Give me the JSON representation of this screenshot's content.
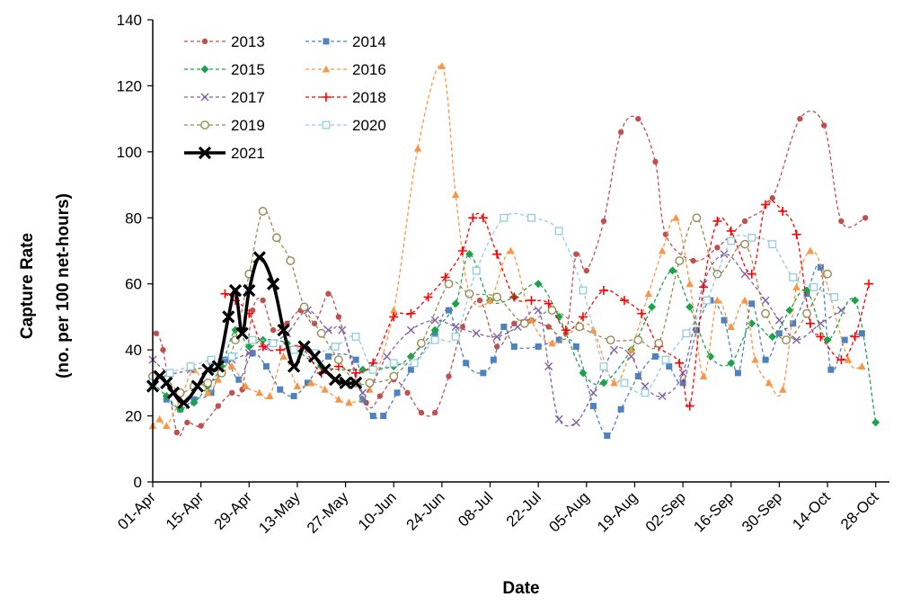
{
  "chart_data": {
    "type": "line",
    "title": "",
    "xlabel": "Date",
    "ylabel": "Capture Rate",
    "ylabel_sub": "(no. per 100 net-hours)",
    "x_is_date": true,
    "xlim": [
      "Apr 1",
      "Nov 1"
    ],
    "ylim": [
      0,
      140
    ],
    "yticks": [
      0,
      20,
      40,
      60,
      80,
      100,
      120,
      140
    ],
    "xticks": [
      {
        "date": "Apr 1",
        "label": "01-Apr"
      },
      {
        "date": "Apr 15",
        "label": "15-Apr"
      },
      {
        "date": "Apr 29",
        "label": "29-Apr"
      },
      {
        "date": "May 13",
        "label": "13-May"
      },
      {
        "date": "May 27",
        "label": "27-May"
      },
      {
        "date": "Jun 10",
        "label": "10-Jun"
      },
      {
        "date": "Jun 24",
        "label": "24-Jun"
      },
      {
        "date": "Jul 8",
        "label": "08-Jul"
      },
      {
        "date": "Jul 22",
        "label": "22-Jul"
      },
      {
        "date": "Aug 5",
        "label": "05-Aug"
      },
      {
        "date": "Aug 19",
        "label": "19-Aug"
      },
      {
        "date": "Sep 2",
        "label": "02-Sep"
      },
      {
        "date": "Sep 16",
        "label": "16-Sep"
      },
      {
        "date": "Sep 30",
        "label": "30-Sep"
      },
      {
        "date": "Oct 14",
        "label": "14-Oct"
      },
      {
        "date": "Oct 28",
        "label": "28-Oct"
      }
    ],
    "grid": false,
    "legend_position": "top-left",
    "series": [
      {
        "name": "2013",
        "color": "#c0504d",
        "marker": "circle",
        "dashed": true,
        "x": [
          "Apr 2",
          "Apr 4",
          "Apr 8",
          "Apr 11",
          "Apr 15",
          "Apr 20",
          "Apr 24",
          "Apr 27",
          "Apr 30",
          "May 3",
          "May 6",
          "May 10",
          "May 14",
          "May 18",
          "May 22",
          "May 25",
          "Jun 2",
          "Jun 6",
          "Jun 10",
          "Jun 14",
          "Jun 18",
          "Jun 22",
          "Jun 26",
          "Jun 30",
          "Jul 5",
          "Jul 10",
          "Jul 15",
          "Jul 20",
          "Jul 25",
          "Jul 30",
          "Aug 2",
          "Aug 5",
          "Aug 10",
          "Aug 15",
          "Aug 20",
          "Aug 25",
          "Aug 28",
          "Sep 5",
          "Sep 12",
          "Sep 20",
          "Sep 28",
          "Oct 6",
          "Oct 13",
          "Oct 18",
          "Oct 25"
        ],
        "y": [
          45,
          40,
          15,
          18,
          17,
          23,
          27,
          28,
          52,
          55,
          46,
          48,
          52,
          48,
          57,
          50,
          24,
          26,
          31,
          27,
          21,
          21,
          32,
          47,
          55,
          41,
          48,
          49,
          47,
          45,
          69,
          64,
          79,
          106,
          110,
          97,
          75,
          67,
          71,
          79,
          86,
          110,
          108,
          79,
          80
        ]
      },
      {
        "name": "2014",
        "color": "#4f81bd",
        "marker": "square",
        "dashed": true,
        "x": [
          "Apr 5",
          "Apr 9",
          "Apr 13",
          "Apr 18",
          "Apr 22",
          "Apr 26",
          "Apr 30",
          "May 4",
          "May 8",
          "May 12",
          "May 16",
          "May 22",
          "May 30",
          "Jun 1",
          "Jun 4",
          "Jun 7",
          "Jun 11",
          "Jun 15",
          "Jun 22",
          "Jun 26",
          "Jul 1",
          "Jul 6",
          "Jul 9",
          "Jul 12",
          "Jul 15",
          "Jul 22",
          "Jul 28",
          "Aug 2",
          "Aug 7",
          "Aug 11",
          "Aug 15",
          "Aug 20",
          "Aug 25",
          "Aug 29",
          "Sep 2",
          "Sep 6",
          "Sep 10",
          "Sep 14",
          "Sep 18",
          "Sep 22",
          "Sep 26",
          "Sep 30",
          "Oct 4",
          "Oct 8",
          "Oct 12",
          "Oct 15",
          "Oct 19",
          "Oct 24"
        ],
        "y": [
          25,
          22,
          25,
          27,
          37,
          31,
          39,
          35,
          28,
          26,
          30,
          38,
          37,
          25,
          20,
          20,
          27,
          34,
          45,
          52,
          36,
          33,
          37,
          47,
          41,
          41,
          43,
          41,
          23,
          14,
          22,
          32,
          38,
          35,
          30,
          46,
          55,
          49,
          33,
          54,
          37,
          45,
          48,
          57,
          65,
          34,
          43,
          45
        ]
      },
      {
        "name": "2015",
        "color": "#1aa34a",
        "marker": "diamond",
        "dashed": true,
        "x": [
          "Apr 1",
          "Apr 5",
          "Apr 9",
          "Apr 13",
          "Apr 17",
          "Apr 21",
          "Apr 25",
          "Apr 29",
          "May 3",
          "May 10",
          "May 20",
          "Jun 1",
          "Jun 10",
          "Jun 15",
          "Jun 22",
          "Jun 28",
          "Jul 2",
          "Jul 8",
          "Jul 15",
          "Jul 22",
          "Jul 28",
          "Aug 4",
          "Aug 10",
          "Aug 18",
          "Aug 24",
          "Aug 30",
          "Sep 4",
          "Sep 10",
          "Sep 16",
          "Sep 22",
          "Sep 28",
          "Oct 3",
          "Oct 8",
          "Oct 14",
          "Oct 22",
          "Oct 28"
        ],
        "y": [
          30,
          26,
          22,
          24,
          29,
          35,
          46,
          41,
          43,
          42,
          35,
          34,
          35,
          38,
          46,
          54,
          69,
          55,
          56,
          60,
          50,
          33,
          30,
          40,
          53,
          64,
          53,
          38,
          36,
          48,
          44,
          52,
          58,
          43,
          55,
          18
        ]
      },
      {
        "name": "2016",
        "color": "#f79646",
        "marker": "triangle",
        "dashed": true,
        "x": [
          "Apr 1",
          "Apr 3",
          "Apr 5",
          "Apr 9",
          "Apr 13",
          "Apr 17",
          "Apr 20",
          "Apr 24",
          "Apr 28",
          "May 2",
          "May 5",
          "May 9",
          "May 13",
          "May 17",
          "May 21",
          "May 25",
          "May 28",
          "Jun 3",
          "Jun 10",
          "Jun 17",
          "Jun 24",
          "Jun 28",
          "Jul 2",
          "Jul 8",
          "Jul 14",
          "Jul 20",
          "Jul 26",
          "Aug 3",
          "Aug 7",
          "Aug 13",
          "Aug 18",
          "Aug 23",
          "Aug 27",
          "Aug 31",
          "Sep 4",
          "Sep 8",
          "Sep 12",
          "Sep 16",
          "Sep 20",
          "Sep 23",
          "Sep 27",
          "Oct 1",
          "Oct 5",
          "Oct 9",
          "Oct 13",
          "Oct 20",
          "Oct 24"
        ],
        "y": [
          17,
          19,
          17,
          25,
          34,
          27,
          31,
          35,
          29,
          27,
          26,
          38,
          29,
          30,
          28,
          25,
          24,
          28,
          52,
          101,
          126,
          87,
          57,
          55,
          70,
          49,
          42,
          47,
          46,
          30,
          40,
          57,
          70,
          80,
          60,
          32,
          55,
          47,
          55,
          37,
          30,
          28,
          59,
          70,
          63,
          37,
          35
        ]
      },
      {
        "name": "2017",
        "color": "#8064a2",
        "marker": "x",
        "dashed": true,
        "x": [
          "Apr 1",
          "Apr 6",
          "Apr 12",
          "Apr 18",
          "Apr 24",
          "Apr 29",
          "May 4",
          "May 10",
          "May 16",
          "May 22",
          "May 26",
          "Jun 1",
          "Jun 8",
          "Jun 15",
          "Jun 22",
          "Jun 28",
          "Jul 4",
          "Jul 10",
          "Jul 16",
          "Jul 22",
          "Jul 25",
          "Jul 28",
          "Aug 2",
          "Aug 7",
          "Aug 13",
          "Aug 18",
          "Aug 22",
          "Aug 27",
          "Sep 2",
          "Sep 8",
          "Sep 14",
          "Sep 20",
          "Sep 26",
          "Sep 30",
          "Oct 5",
          "Oct 12",
          "Oct 18"
        ],
        "y": [
          37,
          33,
          34,
          35,
          37,
          39,
          41,
          45,
          52,
          46,
          46,
          27,
          38,
          46,
          49,
          47,
          45,
          44,
          47,
          52,
          35,
          19,
          18,
          27,
          40,
          38,
          29,
          26,
          33,
          60,
          69,
          63,
          55,
          49,
          43,
          48,
          52
        ]
      },
      {
        "name": "2018",
        "color": "#ff0000",
        "marker": "plus",
        "dashed": true,
        "x": [
          "Apr 22",
          "Apr 25",
          "Apr 29",
          "May 3",
          "May 8",
          "May 14",
          "May 20",
          "May 25",
          "May 30",
          "Jun 4",
          "Jun 10",
          "Jun 15",
          "Jun 20",
          "Jun 25",
          "Jun 30",
          "Jul 3",
          "Jul 6",
          "Jul 10",
          "Jul 15",
          "Jul 20",
          "Jul 25",
          "Jul 30",
          "Aug 4",
          "Aug 10",
          "Aug 16",
          "Aug 21",
          "Aug 26",
          "Sep 1",
          "Sep 4",
          "Sep 8",
          "Sep 12",
          "Sep 16",
          "Sep 22",
          "Sep 26",
          "Oct 1",
          "Oct 5",
          "Oct 9",
          "Oct 12",
          "Oct 18",
          "Oct 22",
          "Oct 26"
        ],
        "y": [
          57,
          55,
          51,
          41,
          40,
          41,
          33,
          35,
          33,
          36,
          50,
          51,
          56,
          62,
          70,
          80,
          80,
          69,
          56,
          55,
          54,
          46,
          50,
          58,
          55,
          51,
          41,
          36,
          23,
          59,
          79,
          76,
          63,
          84,
          82,
          75,
          48,
          44,
          37,
          44,
          60
        ]
      },
      {
        "name": "2019",
        "color": "#948a54",
        "marker": "circle-open",
        "dashed": true,
        "x": [
          "Apr 1",
          "Apr 5",
          "Apr 9",
          "Apr 13",
          "Apr 17",
          "Apr 21",
          "Apr 25",
          "Apr 29",
          "May 3",
          "May 7",
          "May 11",
          "May 15",
          "May 20",
          "May 25",
          "May 30",
          "Jun 3",
          "Jun 10",
          "Jun 18",
          "Jun 26",
          "Jul 2",
          "Jul 10",
          "Jul 18",
          "Jul 26",
          "Aug 3",
          "Aug 12",
          "Aug 20",
          "Aug 26",
          "Sep 1",
          "Sep 6",
          "Sep 12",
          "Sep 20",
          "Sep 26",
          "Oct 2",
          "Oct 8",
          "Oct 14"
        ],
        "y": [
          32,
          31,
          27,
          29,
          30,
          33,
          43,
          63,
          82,
          74,
          67,
          53,
          45,
          37,
          30,
          30,
          32,
          42,
          60,
          57,
          56,
          48,
          52,
          47,
          43,
          43,
          42,
          67,
          80,
          63,
          72,
          51,
          43,
          51,
          63
        ]
      },
      {
        "name": "2020",
        "color": "#92cddc",
        "marker": "square-open",
        "dashed": true,
        "x": [
          "Apr 1",
          "Apr 6",
          "Apr 12",
          "Apr 18",
          "Apr 24",
          "Apr 30",
          "May 6",
          "May 12",
          "May 18",
          "May 24",
          "May 30",
          "Jun 4",
          "Jun 10",
          "Jun 16",
          "Jun 22",
          "Jun 28",
          "Jul 4",
          "Jul 12",
          "Jul 20",
          "Jul 28",
          "Aug 4",
          "Aug 10",
          "Aug 16",
          "Aug 22",
          "Aug 28",
          "Sep 3",
          "Sep 9",
          "Sep 16",
          "Sep 22",
          "Sep 28",
          "Oct 4",
          "Oct 10",
          "Oct 16"
        ],
        "y": [
          30,
          33,
          35,
          37,
          38,
          43,
          42,
          40,
          39,
          41,
          44,
          34,
          36,
          36,
          43,
          44,
          64,
          80,
          80,
          76,
          58,
          35,
          30,
          27,
          37,
          45,
          55,
          73,
          74,
          72,
          62,
          59,
          56
        ]
      },
      {
        "name": "2021",
        "color": "#000000",
        "marker": "x-bold",
        "dashed": false,
        "x": [
          "Apr 1",
          "Apr 3",
          "Apr 5",
          "Apr 7",
          "Apr 10",
          "Apr 14",
          "Apr 17",
          "Apr 20",
          "Apr 23",
          "Apr 25",
          "Apr 27",
          "Apr 29",
          "May 2",
          "May 6",
          "May 9",
          "May 12",
          "May 15",
          "May 18",
          "May 21",
          "May 24",
          "May 27",
          "May 30"
        ],
        "y": [
          29,
          32,
          30,
          27,
          24,
          29,
          34,
          35,
          50,
          58,
          45,
          58,
          68,
          60,
          46,
          35,
          41,
          38,
          34,
          31,
          30,
          30
        ]
      }
    ]
  }
}
